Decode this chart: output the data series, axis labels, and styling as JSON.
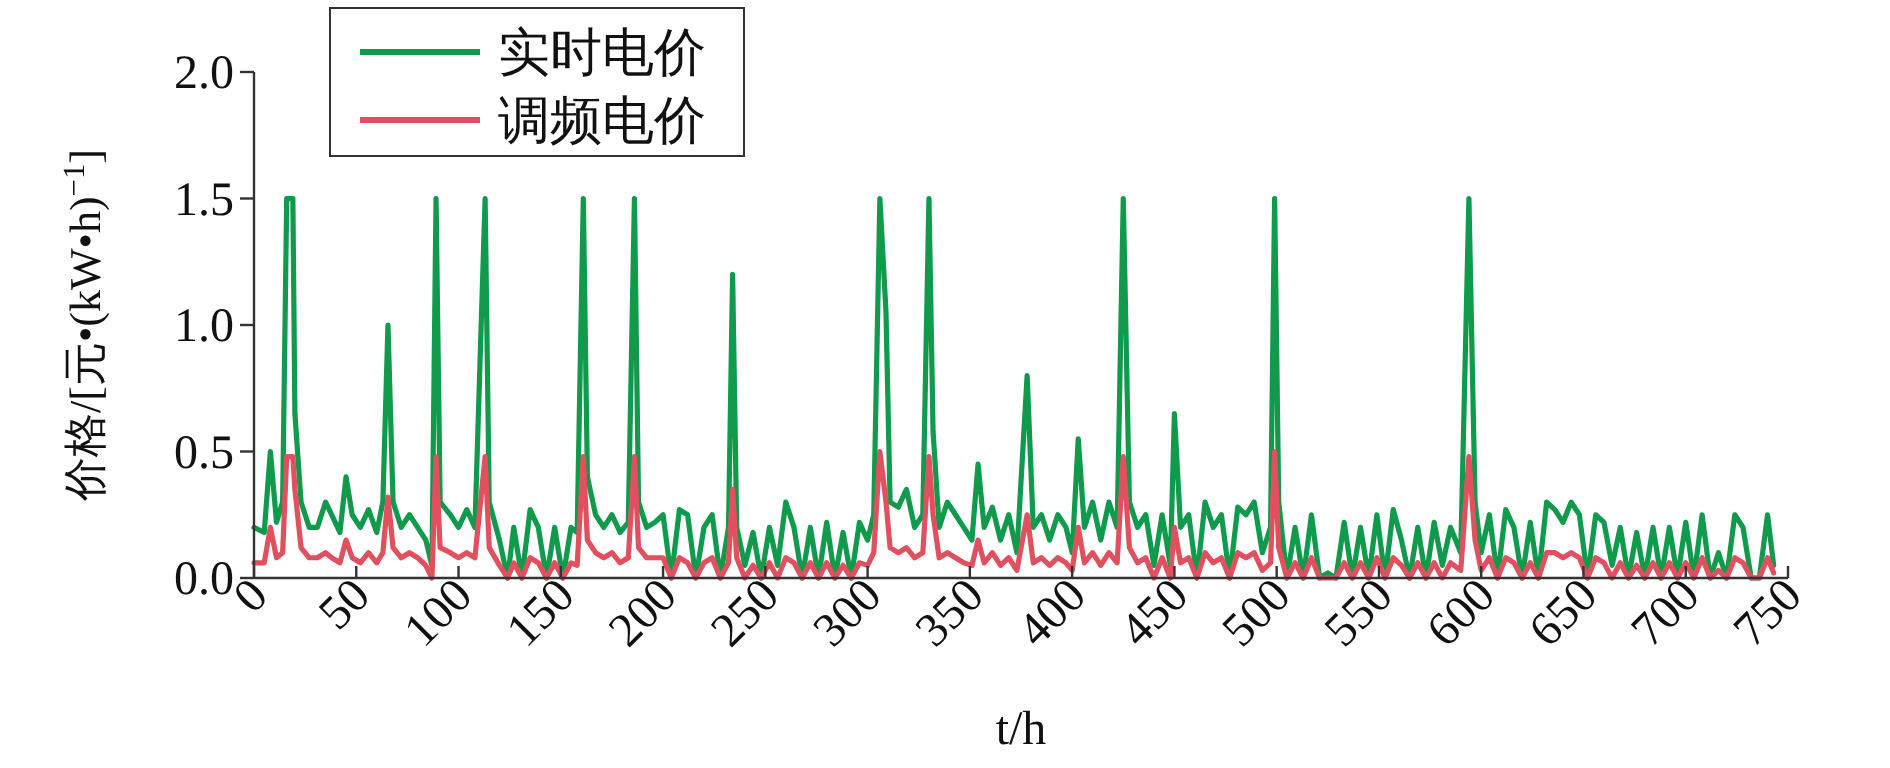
{
  "chart_data": {
    "type": "line",
    "xlabel": "t/h",
    "ylabel": "价格/[元•(kW•h)$^{−1}$]",
    "xlim": [
      0,
      750
    ],
    "ylim": [
      0,
      2.0
    ],
    "xticks": [
      0,
      50,
      100,
      150,
      200,
      250,
      300,
      350,
      400,
      450,
      500,
      550,
      600,
      650,
      700,
      750
    ],
    "yticks": [
      {
        "value": 0,
        "label": "0.0"
      },
      {
        "value": 0.5,
        "label": "0.5"
      },
      {
        "value": 1,
        "label": "1.0"
      },
      {
        "value": 1.5,
        "label": "1.5"
      },
      {
        "value": 2,
        "label": "2.0"
      }
    ],
    "legend": "top left",
    "x": [
      0,
      5,
      8,
      11,
      14,
      16,
      19,
      20,
      23,
      27,
      31,
      35,
      38,
      42,
      45,
      48,
      52,
      56,
      60,
      63,
      65.5,
      68,
      72,
      76,
      80,
      84,
      87,
      89,
      91,
      96,
      100,
      104,
      108,
      113,
      115,
      120,
      124,
      127,
      131,
      135,
      139,
      143,
      147,
      151,
      155,
      158,
      161,
      163,
      167,
      171,
      175,
      179,
      183,
      186,
      188,
      192,
      196,
      200,
      204,
      208,
      212,
      216,
      220,
      224,
      228,
      232,
      234,
      236,
      240,
      244,
      248,
      252,
      256,
      260,
      264,
      268,
      272,
      276,
      280,
      284,
      288,
      292,
      296,
      300,
      303,
      306,
      309,
      311,
      315,
      319,
      323,
      327,
      330,
      332,
      335,
      339,
      343,
      347,
      351,
      354,
      357,
      361,
      365,
      369,
      373,
      378,
      381,
      385,
      389,
      393,
      397,
      400,
      403,
      406,
      410,
      414,
      418,
      422,
      425,
      428,
      432,
      436,
      440,
      444,
      448,
      450,
      453,
      457,
      461,
      465,
      469,
      473,
      477,
      481,
      485,
      489,
      493,
      497,
      499,
      501,
      505,
      509,
      513,
      517,
      521,
      525,
      529,
      533,
      537,
      541,
      545,
      549,
      553,
      557,
      561,
      565,
      569,
      573,
      577,
      581,
      585,
      590,
      594,
      597,
      600,
      604,
      608,
      612,
      616,
      620,
      624,
      628,
      632,
      636,
      640,
      644,
      648,
      652,
      656,
      660,
      664,
      668,
      672,
      676,
      680,
      684,
      688,
      692,
      696,
      700,
      704,
      708,
      712,
      716,
      720,
      724,
      728,
      732,
      736,
      740,
      743
    ],
    "series": [
      {
        "name": "实时电价",
        "color": "#0f9a4c",
        "values": [
          0.2,
          0.18,
          0.5,
          0.22,
          0.3,
          1.5,
          1.5,
          0.65,
          0.3,
          0.2,
          0.2,
          0.3,
          0.25,
          0.18,
          0.4,
          0.25,
          0.2,
          0.27,
          0.18,
          0.3,
          1,
          0.3,
          0.2,
          0.25,
          0.2,
          0.15,
          0.05,
          1.5,
          0.3,
          0.25,
          0.2,
          0.27,
          0.2,
          1.5,
          0.3,
          0.15,
          0,
          0.2,
          0,
          0.27,
          0.2,
          0,
          0.2,
          0,
          0.2,
          0.18,
          1.5,
          0.4,
          0.25,
          0.2,
          0.25,
          0.18,
          0.22,
          1.5,
          0.3,
          0.2,
          0.22,
          0.25,
          0,
          0.27,
          0.25,
          0,
          0.2,
          0.25,
          0,
          0.2,
          1.2,
          0.2,
          0.05,
          0.18,
          0,
          0.2,
          0.05,
          0.3,
          0.2,
          0,
          0.2,
          0,
          0.22,
          0,
          0.18,
          0,
          0.22,
          0.15,
          0.25,
          1.5,
          1.05,
          0.3,
          0.28,
          0.35,
          0.2,
          0.25,
          1.5,
          0.58,
          0.2,
          0.3,
          0.25,
          0.2,
          0.15,
          0.45,
          0.2,
          0.28,
          0.15,
          0.25,
          0.1,
          0.8,
          0.2,
          0.25,
          0.15,
          0.25,
          0.2,
          0.1,
          0.55,
          0.2,
          0.3,
          0.15,
          0.3,
          0.2,
          1.5,
          0.3,
          0.2,
          0.25,
          0.05,
          0.25,
          0.05,
          0.65,
          0.2,
          0.25,
          0,
          0.3,
          0.2,
          0.25,
          0,
          0.28,
          0.25,
          0.3,
          0.1,
          0.2,
          1.5,
          0.3,
          0,
          0.2,
          0,
          0.25,
          0,
          0.02,
          0,
          0.22,
          0,
          0.2,
          0,
          0.25,
          0,
          0.27,
          0.15,
          0,
          0.2,
          0,
          0.22,
          0.05,
          0.2,
          0.1,
          1.5,
          0.3,
          0.1,
          0.25,
          0,
          0.27,
          0.2,
          0,
          0.22,
          0,
          0.3,
          0.27,
          0.22,
          0.3,
          0.25,
          0,
          0.25,
          0.22,
          0.05,
          0.2,
          0,
          0.18,
          0,
          0.2,
          0,
          0.2,
          0,
          0.22,
          0,
          0.25,
          0,
          0.1,
          0,
          0.25,
          0.2,
          0,
          0,
          0.25,
          0.05
        ]
      },
      {
        "name": "调频电价",
        "color": "#e0505e",
        "values": [
          0.06,
          0.06,
          0.2,
          0.08,
          0.1,
          0.48,
          0.48,
          0.35,
          0.12,
          0.08,
          0.08,
          0.1,
          0.08,
          0.06,
          0.15,
          0.08,
          0.06,
          0.1,
          0.06,
          0.1,
          0.32,
          0.12,
          0.08,
          0.1,
          0.08,
          0.05,
          0,
          0.48,
          0.12,
          0.1,
          0.08,
          0.1,
          0.08,
          0.48,
          0.12,
          0.05,
          0,
          0.06,
          0,
          0.08,
          0.06,
          0,
          0.06,
          0,
          0.06,
          0.05,
          0.48,
          0.15,
          0.1,
          0.08,
          0.1,
          0.06,
          0.08,
          0.48,
          0.12,
          0.08,
          0.08,
          0.08,
          0,
          0.08,
          0.06,
          0,
          0.06,
          0.08,
          0,
          0.06,
          0.35,
          0.08,
          0,
          0.05,
          0,
          0.06,
          0,
          0.08,
          0.06,
          0,
          0.06,
          0,
          0.06,
          0,
          0.05,
          0,
          0.06,
          0.05,
          0.1,
          0.5,
          0.3,
          0.12,
          0.1,
          0.12,
          0.08,
          0.1,
          0.48,
          0.25,
          0.08,
          0.1,
          0.08,
          0.06,
          0.05,
          0.15,
          0.06,
          0.1,
          0.05,
          0.08,
          0.03,
          0.25,
          0.06,
          0.08,
          0.05,
          0.08,
          0.06,
          0.03,
          0.2,
          0.06,
          0.1,
          0.05,
          0.1,
          0.06,
          0.48,
          0.12,
          0.06,
          0.08,
          0,
          0.08,
          0,
          0.2,
          0.06,
          0.08,
          0,
          0.1,
          0.06,
          0.08,
          0,
          0.1,
          0.08,
          0.1,
          0.03,
          0.06,
          0.5,
          0.12,
          0,
          0.06,
          0,
          0.08,
          0,
          0,
          0,
          0.06,
          0,
          0.06,
          0,
          0.08,
          0,
          0.08,
          0.05,
          0,
          0.06,
          0,
          0.06,
          0,
          0.06,
          0.03,
          0.48,
          0.15,
          0.03,
          0.08,
          0,
          0.08,
          0.06,
          0,
          0.06,
          0,
          0.1,
          0.1,
          0.08,
          0.1,
          0.08,
          0,
          0.08,
          0.06,
          0,
          0.06,
          0,
          0.05,
          0,
          0.06,
          0,
          0.06,
          0,
          0.06,
          0,
          0.08,
          0,
          0.03,
          0,
          0.08,
          0.06,
          0,
          0,
          0.08,
          0.02
        ]
      }
    ]
  }
}
